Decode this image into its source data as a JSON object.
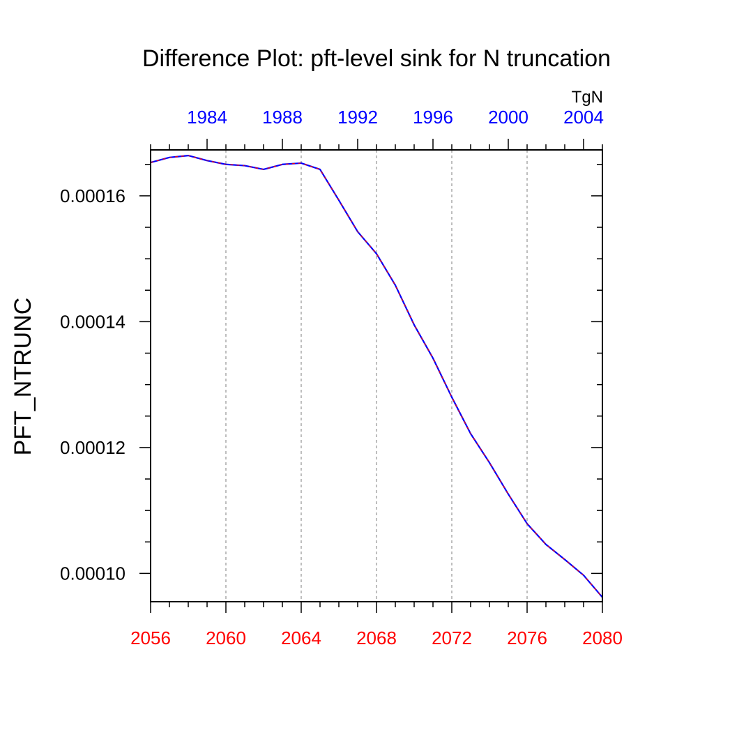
{
  "chart_data": {
    "type": "line",
    "title": "Difference Plot: pft-level sink for N truncation",
    "ylabel": "PFT_NTRUNC",
    "units": "TgN",
    "xlim": [
      2056,
      2080
    ],
    "ylim": [
      9.55e-05,
      0.0001673
    ],
    "x_ticks": [
      2056,
      2060,
      2064,
      2068,
      2072,
      2076,
      2080
    ],
    "x_tick_labels": [
      "2056",
      "2060",
      "2064",
      "2068",
      "2072",
      "2076",
      "2080"
    ],
    "top_axis": {
      "ticks": [
        1984,
        1988,
        1992,
        1996,
        2000,
        2004
      ],
      "tick_labels": [
        "1984",
        "1988",
        "1992",
        "1996",
        "2000",
        "2004"
      ],
      "xlim": [
        1981,
        2005
      ],
      "color": "#0000ff"
    },
    "y_ticks": [
      0.0001,
      0.00012,
      0.00014,
      0.00016
    ],
    "y_tick_labels": [
      "0.00010",
      "0.00012",
      "0.00014",
      "0.00016"
    ],
    "y_minor_step": 5e-06,
    "bottom_tick_color": "#ff0000",
    "grid": "x-major-dashed",
    "series": [
      {
        "color": "#0000ff",
        "dash_color": "#ff0000",
        "x": [
          2056,
          2057,
          2058,
          2059,
          2060,
          2061,
          2062,
          2063,
          2064,
          2065,
          2066,
          2067,
          2068,
          2069,
          2070,
          2071,
          2072,
          2073,
          2074,
          2075,
          2076,
          2077,
          2078,
          2079,
          2080
        ],
        "y": [
          0.0001653,
          0.0001661,
          0.0001664,
          0.0001656,
          0.000165,
          0.0001648,
          0.0001642,
          0.000165,
          0.0001652,
          0.0001642,
          0.0001593,
          0.0001543,
          0.0001508,
          0.0001458,
          0.0001395,
          0.0001342,
          0.000128,
          0.0001222,
          0.0001176,
          0.0001126,
          0.0001079,
          0.0001046,
          0.0001022,
          9.97e-05,
          9.62e-05
        ]
      }
    ]
  }
}
